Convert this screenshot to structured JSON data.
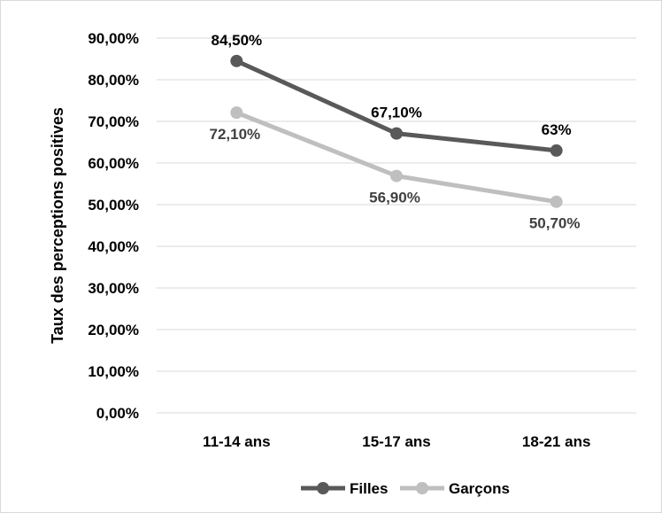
{
  "chart_data": {
    "type": "line",
    "title": "",
    "xlabel": "",
    "ylabel": "Taux des perceptions positives",
    "categories": [
      "11-14 ans",
      "15-17 ans",
      "18-21 ans"
    ],
    "ylim": [
      0,
      90
    ],
    "y_ticks": [
      "0,00%",
      "10,00%",
      "20,00%",
      "30,00%",
      "40,00%",
      "50,00%",
      "60,00%",
      "70,00%",
      "80,00%",
      "90,00%"
    ],
    "grid": true,
    "legend_position": "bottom",
    "series": [
      {
        "name": "Filles",
        "color": "#595959",
        "values": [
          84.5,
          67.1,
          63.0
        ],
        "labels": [
          "84,50%",
          "67,10%",
          "63%"
        ],
        "label_color": "#000000",
        "label_position": "above"
      },
      {
        "name": "Garçons",
        "color": "#bfbfbf",
        "values": [
          72.1,
          56.9,
          50.7
        ],
        "labels": [
          "72,10%",
          "56,90%",
          "50,70%"
        ],
        "label_color": "#404040",
        "label_position": "below"
      }
    ]
  }
}
